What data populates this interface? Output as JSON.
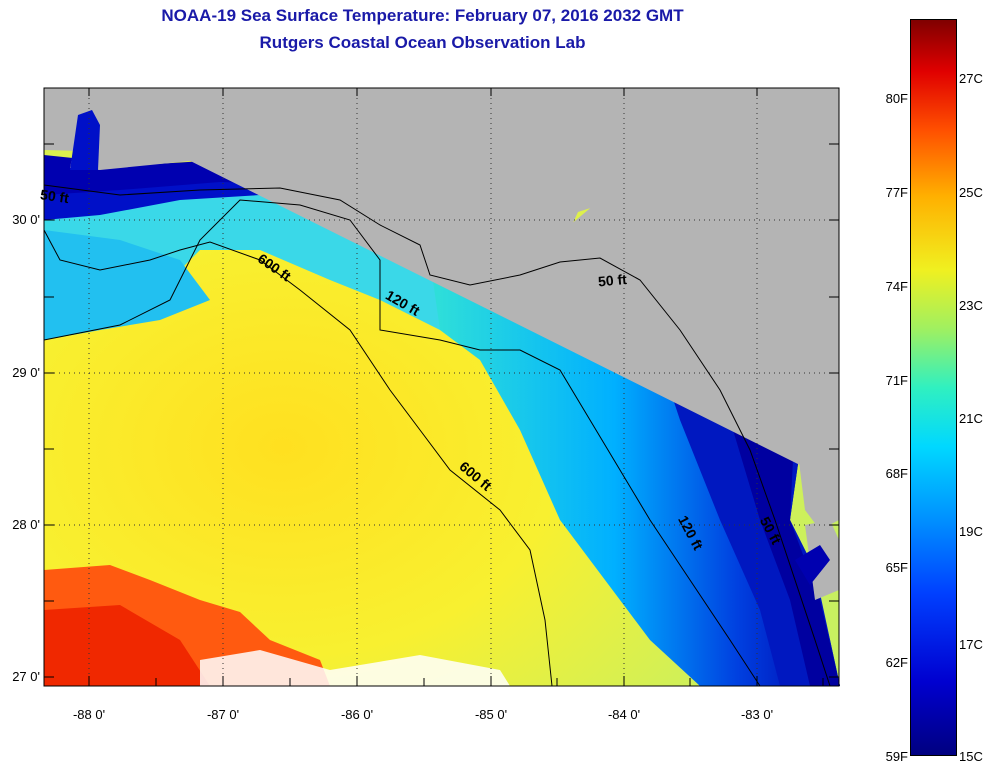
{
  "title": {
    "line1": "NOAA-19 Sea Surface Temperature:  February 07, 2016 2032 GMT",
    "line2": "Rutgers Coastal Ocean Observation Lab"
  },
  "map": {
    "lat_labels": [
      "30 0'",
      "29 0'",
      "28 0'",
      "27 0'"
    ],
    "lon_labels": [
      "-88 0'",
      "-87 0'",
      "-86 0'",
      "-85 0'",
      "-84 0'",
      "-83 0'"
    ],
    "contour_labels": [
      "50 ft",
      "600 ft",
      "120 ft",
      "50 ft",
      "600 ft",
      "120 ft",
      "50 ft"
    ]
  },
  "colorbar": {
    "fahrenheit_labels": [
      "80F",
      "77F",
      "74F",
      "71F",
      "68F",
      "65F",
      "62F",
      "59F"
    ],
    "celsius_labels": [
      "27C",
      "25C",
      "23C",
      "21C",
      "19C",
      "17C",
      "15C"
    ],
    "range_c": [
      15,
      28
    ]
  },
  "colors": {
    "title": "#1a1aa8",
    "land": "#b4b4b4",
    "cold": "#0000a0",
    "warm": "#ff3000"
  }
}
